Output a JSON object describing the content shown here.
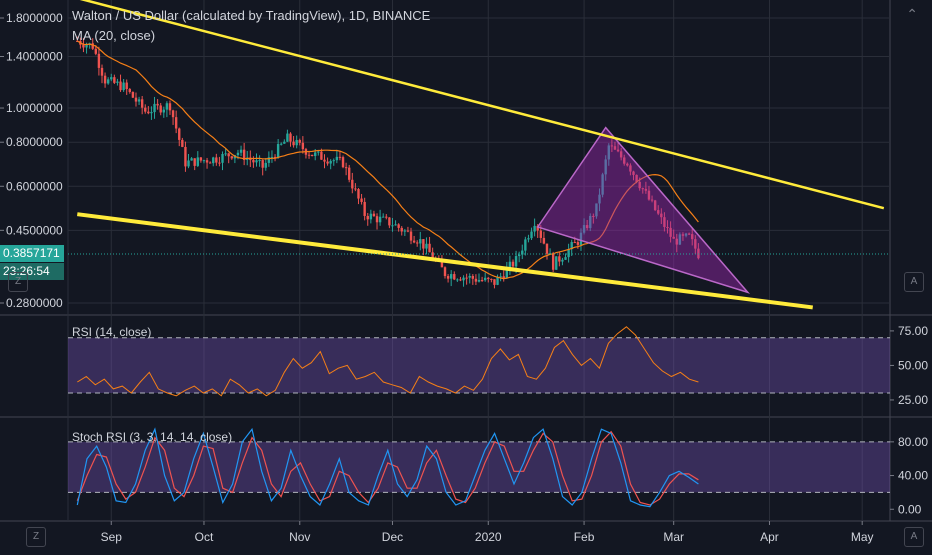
{
  "header": {
    "title": "Walton / US Dollar (calculated by TradingView), 1D, BINANCE",
    "ma_label": "MA (20, close)"
  },
  "price_tags": {
    "last_price": "0.3857171",
    "countdown": "23:26:54"
  },
  "rsi_panel": {
    "label": "RSI (14, close)"
  },
  "stoch_panel": {
    "label": "Stoch RSI (3, 3, 14, 14, close)"
  },
  "buttons": {
    "z_top": "Z",
    "z_bottom": "Z",
    "a_top": "A",
    "a_bottom": "A"
  },
  "colors": {
    "background": "#131722",
    "grid": "#2a2e39",
    "up_candle": "#26a69a",
    "down_candle": "#ef5350",
    "ma_line": "#f57f17",
    "trendline": "#ffeb3b",
    "pattern": "#9c27b0",
    "rsi_line": "#f57f17",
    "stoch_k": "#2196f3",
    "stoch_d": "#ef5350",
    "price_tag": "#26a69a"
  },
  "chart_data": [
    {
      "type": "candlestick",
      "title": "Walton / US Dollar (calculated by TradingView), 1D, BINANCE",
      "scale": "log",
      "y_ticks": [
        "1.8000000",
        "1.4000000",
        "1.0000000",
        "0.8000000",
        "0.6000000",
        "0.4500000",
        "0.2800000"
      ],
      "x_ticks": [
        "Sep",
        "Oct",
        "Nov",
        "Dec",
        "2020",
        "Feb",
        "Mar",
        "Apr",
        "May"
      ],
      "close_series": [
        {
          "x": "2019-08-21",
          "y": 1.55
        },
        {
          "x": "2019-08-26",
          "y": 1.5
        },
        {
          "x": "2019-08-30",
          "y": 1.2
        },
        {
          "x": "2019-09-05",
          "y": 1.15
        },
        {
          "x": "2019-09-12",
          "y": 0.98
        },
        {
          "x": "2019-09-20",
          "y": 1.02
        },
        {
          "x": "2019-09-25",
          "y": 0.7
        },
        {
          "x": "2019-10-05",
          "y": 0.72
        },
        {
          "x": "2019-10-12",
          "y": 0.75
        },
        {
          "x": "2019-10-20",
          "y": 0.68
        },
        {
          "x": "2019-10-28",
          "y": 0.82
        },
        {
          "x": "2019-11-05",
          "y": 0.74
        },
        {
          "x": "2019-11-15",
          "y": 0.7
        },
        {
          "x": "2019-11-22",
          "y": 0.5
        },
        {
          "x": "2019-12-01",
          "y": 0.47
        },
        {
          "x": "2019-12-10",
          "y": 0.42
        },
        {
          "x": "2019-12-18",
          "y": 0.34
        },
        {
          "x": "2019-12-26",
          "y": 0.33
        },
        {
          "x": "2020-01-03",
          "y": 0.32
        },
        {
          "x": "2020-01-10",
          "y": 0.37
        },
        {
          "x": "2020-01-16",
          "y": 0.48
        },
        {
          "x": "2020-01-22",
          "y": 0.36
        },
        {
          "x": "2020-01-30",
          "y": 0.42
        },
        {
          "x": "2020-02-05",
          "y": 0.52
        },
        {
          "x": "2020-02-09",
          "y": 0.78
        },
        {
          "x": "2020-02-15",
          "y": 0.7
        },
        {
          "x": "2020-02-22",
          "y": 0.55
        },
        {
          "x": "2020-03-01",
          "y": 0.42
        },
        {
          "x": "2020-03-06",
          "y": 0.43
        },
        {
          "x": "2020-03-09",
          "y": 0.386
        }
      ],
      "ma": {
        "label": "MA (20, close)",
        "period": 20
      },
      "last_price": 0.3857171,
      "trendlines": [
        {
          "name": "upper",
          "from": {
            "x": "2019-08-21",
            "y": 2.05
          },
          "to": {
            "x": "2020-05-08",
            "y": 0.52
          }
        },
        {
          "name": "lower",
          "from": {
            "x": "2019-08-21",
            "y": 0.5
          },
          "to": {
            "x": "2020-04-15",
            "y": 0.272
          }
        }
      ],
      "pattern_triangle": [
        {
          "x": "2020-01-17",
          "y": 0.46
        },
        {
          "x": "2020-02-08",
          "y": 0.88
        },
        {
          "x": "2020-03-25",
          "y": 0.3
        }
      ]
    },
    {
      "type": "line",
      "name": "RSI (14, close)",
      "y_ticks": [
        "75.00",
        "50.00",
        "25.00"
      ],
      "bands": [
        70,
        30
      ],
      "values": [
        38,
        42,
        36,
        40,
        33,
        35,
        30,
        38,
        45,
        33,
        30,
        28,
        32,
        35,
        30,
        33,
        28,
        40,
        36,
        30,
        33,
        28,
        32,
        45,
        55,
        48,
        52,
        60,
        44,
        48,
        50,
        40,
        42,
        45,
        38,
        36,
        34,
        30,
        42,
        38,
        35,
        33,
        30,
        35,
        32,
        40,
        55,
        62,
        54,
        58,
        42,
        40,
        48,
        63,
        68,
        58,
        50,
        55,
        48,
        66,
        73,
        78,
        72,
        62,
        52,
        46,
        42,
        45,
        40,
        38
      ]
    },
    {
      "type": "line",
      "name": "Stoch RSI (3, 3, 14, 14, close)",
      "y_ticks": [
        "80.00",
        "40.00",
        "0.00"
      ],
      "bands": [
        80,
        20
      ],
      "k": [
        5,
        60,
        75,
        50,
        10,
        8,
        30,
        70,
        95,
        40,
        10,
        20,
        60,
        90,
        50,
        8,
        30,
        80,
        95,
        45,
        10,
        25,
        70,
        40,
        15,
        5,
        30,
        60,
        20,
        10,
        5,
        40,
        70,
        30,
        15,
        35,
        75,
        60,
        20,
        5,
        10,
        40,
        70,
        90,
        60,
        30,
        55,
        85,
        95,
        60,
        15,
        5,
        20,
        60,
        95,
        90,
        55,
        10,
        5,
        3,
        20,
        40,
        45,
        38,
        30
      ],
      "d": [
        10,
        40,
        65,
        62,
        30,
        12,
        20,
        50,
        85,
        70,
        25,
        15,
        40,
        75,
        72,
        25,
        20,
        55,
        85,
        70,
        30,
        15,
        45,
        55,
        30,
        10,
        15,
        45,
        40,
        20,
        8,
        25,
        55,
        50,
        25,
        25,
        55,
        70,
        40,
        12,
        8,
        25,
        55,
        80,
        75,
        45,
        45,
        70,
        90,
        80,
        40,
        10,
        12,
        40,
        80,
        92,
        75,
        30,
        8,
        5,
        12,
        30,
        42,
        42,
        35
      ]
    }
  ]
}
